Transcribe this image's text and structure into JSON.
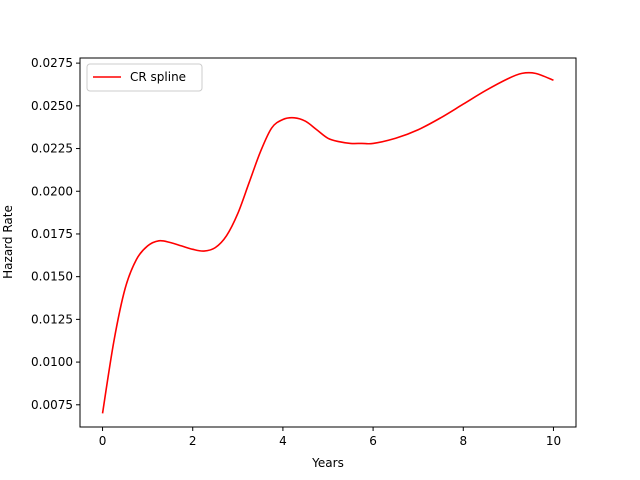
{
  "chart_data": {
    "type": "line",
    "title": "",
    "xlabel": "Years",
    "ylabel": "Hazard Rate",
    "xlim": [
      -0.5,
      10.5
    ],
    "ylim": [
      0.0062,
      0.0278
    ],
    "xticks": [
      0,
      2,
      4,
      6,
      8,
      10
    ],
    "xtick_labels": [
      "0",
      "2",
      "4",
      "6",
      "8",
      "10"
    ],
    "yticks": [
      0.0075,
      0.01,
      0.0125,
      0.015,
      0.0175,
      0.02,
      0.0225,
      0.025,
      0.0275
    ],
    "ytick_labels": [
      "0.0075",
      "0.0100",
      "0.0125",
      "0.0150",
      "0.0175",
      "0.0200",
      "0.0225",
      "0.0250",
      "0.0275"
    ],
    "grid": false,
    "legend_position": "top-left",
    "series": [
      {
        "name": "CR spline",
        "color": "#ff0000",
        "x": [
          0,
          0.25,
          0.5,
          0.75,
          1.0,
          1.25,
          1.5,
          1.75,
          2.0,
          2.25,
          2.5,
          2.75,
          3.0,
          3.25,
          3.5,
          3.75,
          4.0,
          4.25,
          4.5,
          4.75,
          5.0,
          5.25,
          5.5,
          5.75,
          6.0,
          6.5,
          7.0,
          7.5,
          8.0,
          8.5,
          9.0,
          9.3,
          9.6,
          10.0
        ],
        "y": [
          0.007,
          0.0112,
          0.0143,
          0.016,
          0.0168,
          0.0171,
          0.017,
          0.0168,
          0.0166,
          0.0165,
          0.0167,
          0.0174,
          0.0187,
          0.0205,
          0.0223,
          0.0237,
          0.0242,
          0.0243,
          0.0241,
          0.0236,
          0.0231,
          0.0229,
          0.0228,
          0.0228,
          0.0228,
          0.0231,
          0.0236,
          0.0243,
          0.0251,
          0.0259,
          0.0266,
          0.0269,
          0.0269,
          0.0265
        ]
      }
    ]
  }
}
